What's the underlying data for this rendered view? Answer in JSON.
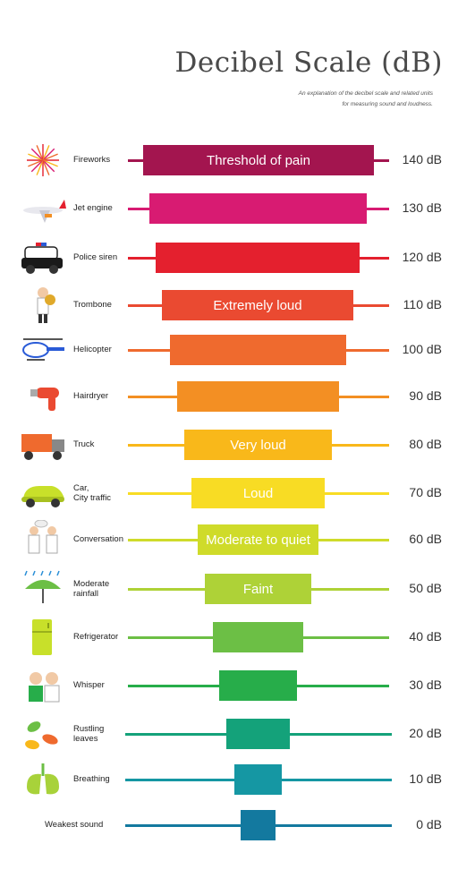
{
  "title": "Decibel Scale (dB)",
  "subtitle_lines": [
    "An explanation of the decibel scale and related units",
    "for measuring sound and loudness."
  ],
  "rows": [
    {
      "source": "Fireworks",
      "db": "140 dB",
      "bar_text": "Threshold of pain",
      "color": "#a3154f",
      "icon": "fireworks-icon"
    },
    {
      "source": "Jet engine",
      "db": "130 dB",
      "bar_text": "",
      "color": "#d81b72",
      "icon": "jet-plane-icon"
    },
    {
      "source": "Police siren",
      "db": "120 dB",
      "bar_text": "",
      "color": "#e4202e",
      "icon": "police-car-icon"
    },
    {
      "source": "Trombone",
      "db": "110 dB",
      "bar_text": "Extremely loud",
      "color": "#ea4a31",
      "icon": "trombone-player-icon"
    },
    {
      "source": "Helicopter",
      "db": "100 dB",
      "bar_text": "",
      "color": "#ef6a2e",
      "icon": "helicopter-icon"
    },
    {
      "source": "Hairdryer",
      "db": "90 dB",
      "bar_text": "",
      "color": "#f38f23",
      "icon": "hairdryer-icon"
    },
    {
      "source": "Truck",
      "db": "80 dB",
      "bar_text": "Very loud",
      "color": "#f9b81a",
      "icon": "truck-icon"
    },
    {
      "source": "Car,\nCity traffic",
      "db": "70 dB",
      "bar_text": "Loud",
      "color": "#f8dc24",
      "icon": "car-icon"
    },
    {
      "source": "Conversation",
      "db": "60 dB",
      "bar_text": "Moderate to quiet",
      "color": "#cfdb2a",
      "icon": "conversation-icon"
    },
    {
      "source": "Moderate\nrainfall",
      "db": "50 dB",
      "bar_text": "Faint",
      "color": "#aed237",
      "icon": "umbrella-rain-icon"
    },
    {
      "source": "Refrigerator",
      "db": "40 dB",
      "bar_text": "",
      "color": "#6cbf45",
      "icon": "refrigerator-icon"
    },
    {
      "source": "Whisper",
      "db": "30 dB",
      "bar_text": "",
      "color": "#27ad4a",
      "icon": "whisper-icon"
    },
    {
      "source": "Rustling\nleaves",
      "db": "20 dB",
      "bar_text": "",
      "color": "#14a27a",
      "icon": "leaves-icon"
    },
    {
      "source": "Breathing",
      "db": "10 dB",
      "bar_text": "",
      "color": "#1597a3",
      "icon": "lungs-icon"
    },
    {
      "source": "Weakest sound",
      "db": "0 dB",
      "bar_text": "",
      "color": "#13799f",
      "icon": ""
    }
  ]
}
